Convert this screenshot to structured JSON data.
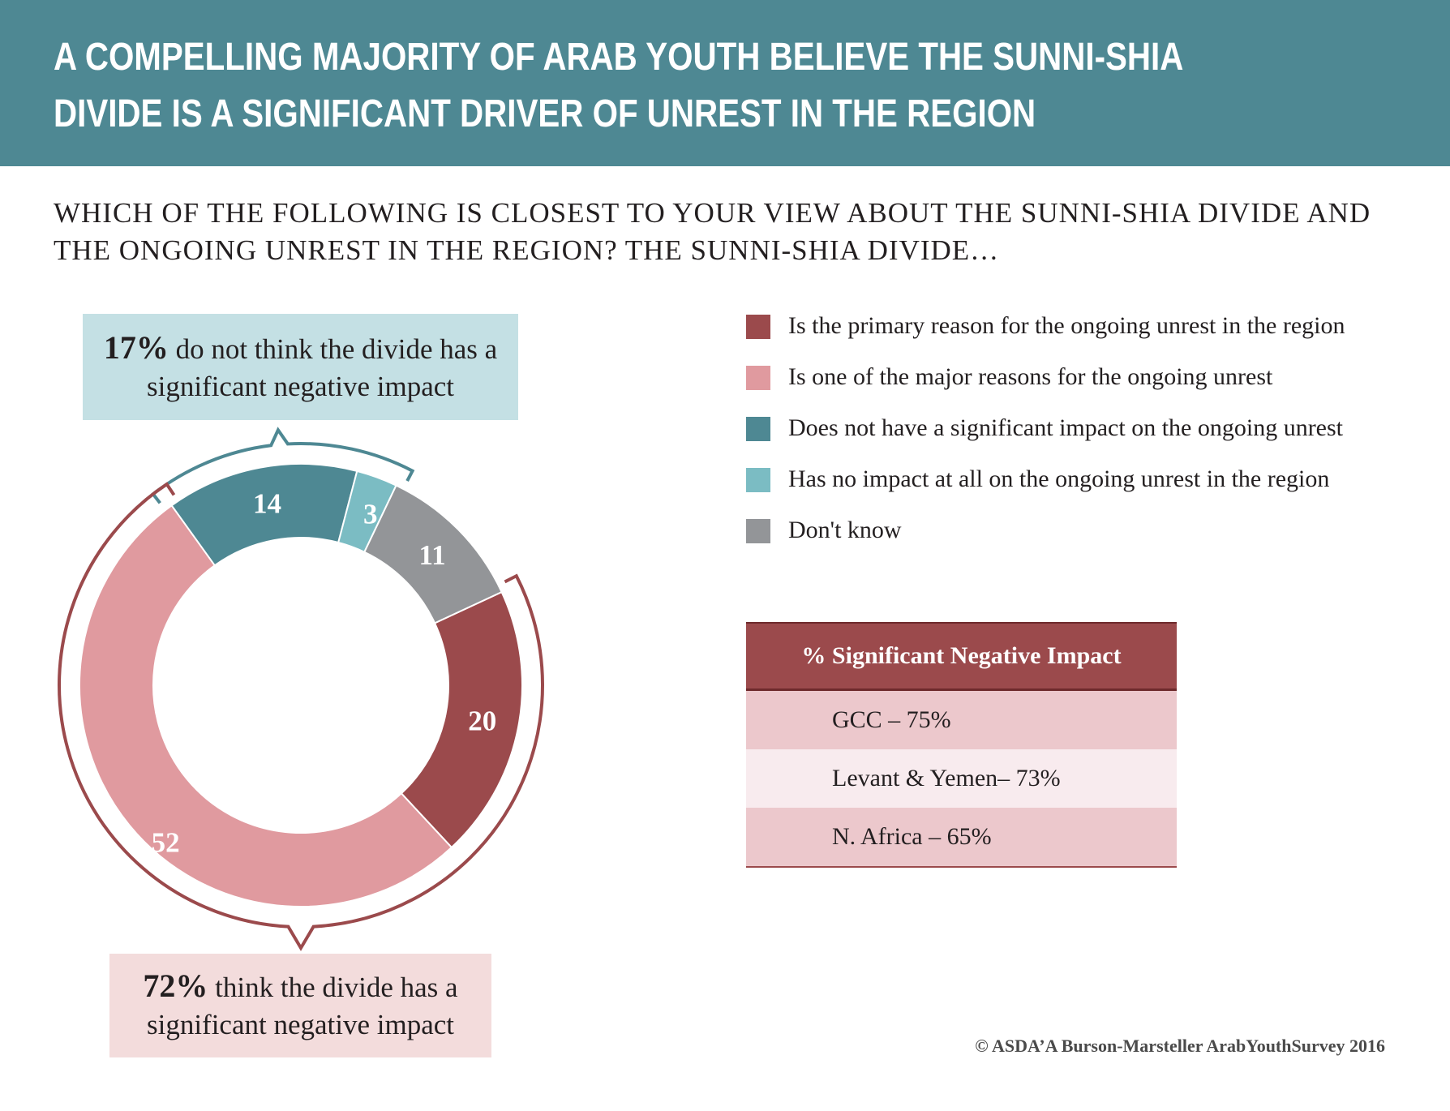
{
  "header": {
    "title": "A compelling majority of Arab youth believe the Sunni-Shia divide is a significant driver of unrest in the region"
  },
  "question": "WHICH OF THE FOLLOWING IS CLOSEST TO YOUR VIEW ABOUT THE SUNNI-SHIA DIVIDE AND THE ONGOING UNREST IN THE REGION? THE SUNNI-SHIA DIVIDE…",
  "callouts": {
    "top": {
      "percent": "17%",
      "text": "do not think the divide has a significant negative impact"
    },
    "bottom": {
      "percent": "72%",
      "text": "think the divide has a significant negative impact"
    }
  },
  "chart_data": {
    "type": "pie",
    "donut": true,
    "categories": [
      "Is the primary reason for the ongoing unrest in the region",
      "Is one of the major reasons for the ongoing unrest",
      "Does not have a significant impact on the ongoing unrest",
      "Has no impact at all on the ongoing unrest in the region",
      "Don't know"
    ],
    "values": [
      20,
      52,
      14,
      3,
      11
    ],
    "colors": [
      "#9b4a4c",
      "#e09a9f",
      "#4e8893",
      "#7bbcc3",
      "#939598"
    ],
    "legend_position": "right"
  },
  "region_table": {
    "header": "% Significant Negative Impact",
    "rows": [
      "GCC – 75%",
      "Levant & Yemen– 73%",
      "N. Africa – 65%"
    ]
  },
  "source": "© ASDA’A Burson-Marsteller ArabYouthSurvey 2016",
  "bracket_colors": {
    "top": "#4e8893",
    "bottom": "#9b4a4c"
  }
}
